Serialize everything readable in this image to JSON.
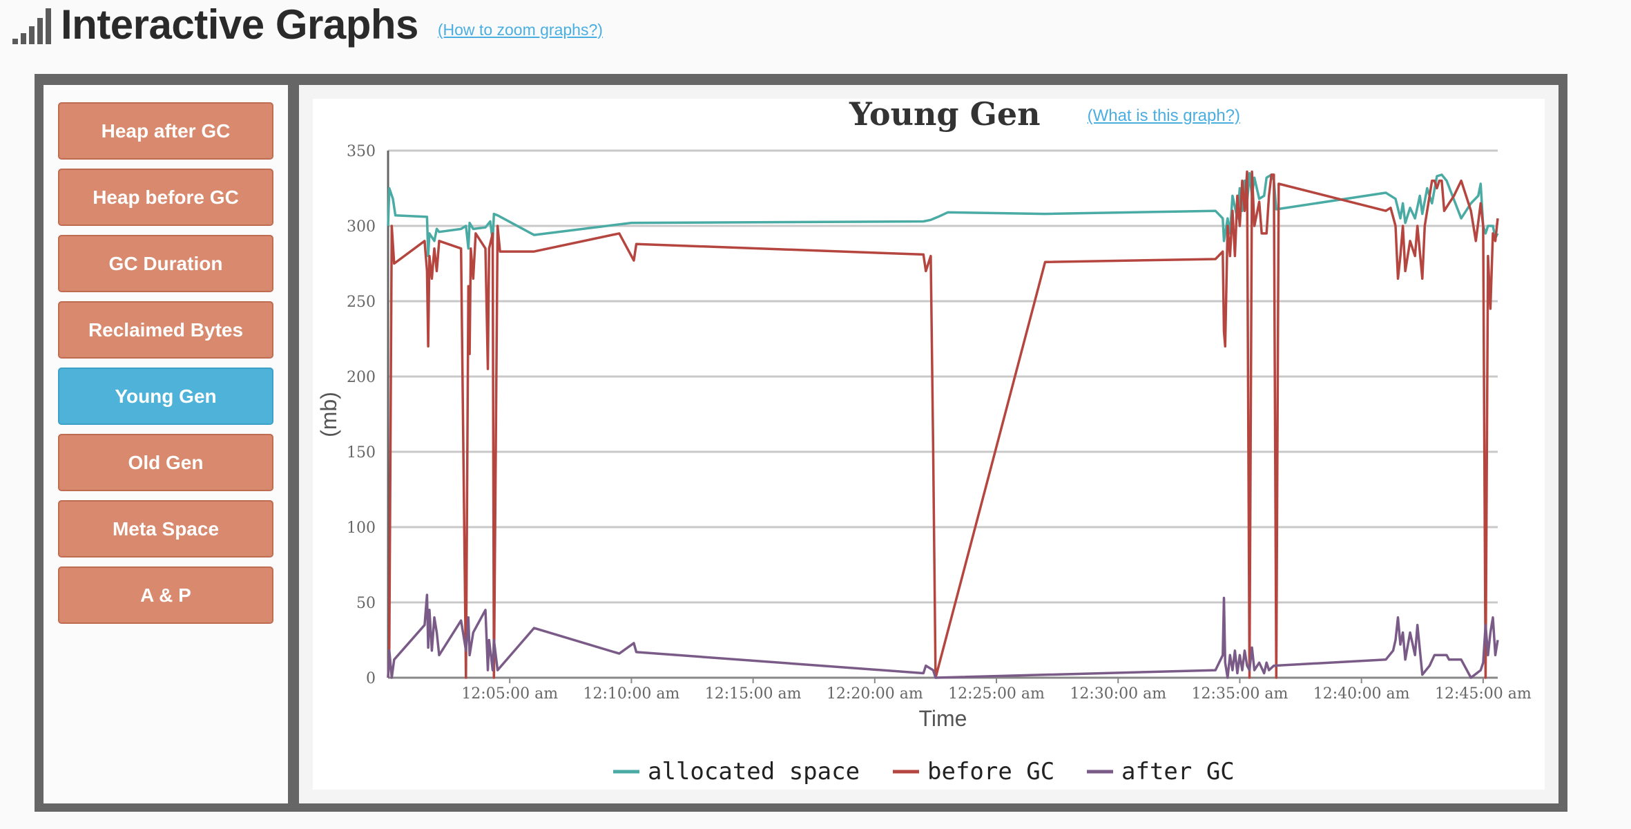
{
  "header": {
    "title": "Interactive Graphs",
    "zoom_help": "(How to zoom graphs?)",
    "icon": "signal-bars-icon"
  },
  "sidebar": {
    "items": [
      {
        "label": "Heap after GC",
        "active": false
      },
      {
        "label": "Heap before GC",
        "active": false
      },
      {
        "label": "GC Duration",
        "active": false
      },
      {
        "label": "Reclaimed Bytes",
        "active": false
      },
      {
        "label": "Young Gen",
        "active": true
      },
      {
        "label": "Old Gen",
        "active": false
      },
      {
        "label": "Meta Space",
        "active": false
      },
      {
        "label": "A & P",
        "active": false
      }
    ]
  },
  "colors": {
    "nav_button": "#d9896d",
    "nav_button_active": "#4fb2d9",
    "frame": "#666666",
    "link": "#4aaee0"
  },
  "chart": {
    "title": "Young Gen",
    "help_link": "(What is this graph?)"
  },
  "chart_data": {
    "type": "line",
    "title": "Young Gen",
    "xlabel": "Time",
    "ylabel": "(mb)",
    "ylim": [
      0,
      350
    ],
    "xlim_minutes": [
      0,
      45.6
    ],
    "yticks": [
      0,
      50,
      100,
      150,
      200,
      250,
      300,
      350
    ],
    "x_ticks": [
      {
        "t": 5,
        "label": "12:05:00 am"
      },
      {
        "t": 10,
        "label": "12:10:00 am"
      },
      {
        "t": 15,
        "label": "12:15:00 am"
      },
      {
        "t": 20,
        "label": "12:20:00 am"
      },
      {
        "t": 25,
        "label": "12:25:00 am"
      },
      {
        "t": 30,
        "label": "12:30:00 am"
      },
      {
        "t": 35,
        "label": "12:35:00 am"
      },
      {
        "t": 40,
        "label": "12:40:00 am"
      },
      {
        "t": 45,
        "label": "12:45:00 am"
      }
    ],
    "grid": true,
    "legend_position": "bottom",
    "series": [
      {
        "name": "allocated space",
        "color": "#4aaba4",
        "points": [
          [
            0,
            300
          ],
          [
            0.05,
            325
          ],
          [
            0.2,
            318
          ],
          [
            0.3,
            307
          ],
          [
            1.6,
            306
          ],
          [
            1.65,
            280
          ],
          [
            1.7,
            295
          ],
          [
            1.9,
            290
          ],
          [
            2.0,
            298
          ],
          [
            2.1,
            296
          ],
          [
            3.0,
            298
          ],
          [
            3.2,
            300
          ],
          [
            3.3,
            285
          ],
          [
            3.35,
            302
          ],
          [
            3.5,
            298
          ],
          [
            4.0,
            299
          ],
          [
            4.2,
            303
          ],
          [
            4.3,
            290
          ],
          [
            4.35,
            308
          ],
          [
            4.5,
            307
          ],
          [
            6.0,
            294
          ],
          [
            10.0,
            302
          ],
          [
            22.0,
            303
          ],
          [
            22.3,
            304
          ],
          [
            22.6,
            306
          ],
          [
            23.0,
            309
          ],
          [
            27.0,
            308
          ],
          [
            34.0,
            310
          ],
          [
            34.3,
            305
          ],
          [
            34.35,
            290
          ],
          [
            34.5,
            305
          ],
          [
            34.6,
            295
          ],
          [
            34.7,
            320
          ],
          [
            34.9,
            305
          ],
          [
            35.0,
            325
          ],
          [
            35.1,
            310
          ],
          [
            35.2,
            330
          ],
          [
            35.3,
            315
          ],
          [
            35.4,
            335
          ],
          [
            35.5,
            320
          ],
          [
            35.6,
            332
          ],
          [
            35.8,
            318
          ],
          [
            36.0,
            320
          ],
          [
            36.1,
            332
          ],
          [
            36.3,
            334
          ],
          [
            36.4,
            330
          ],
          [
            36.5,
            311
          ],
          [
            41.0,
            322
          ],
          [
            41.4,
            318
          ],
          [
            41.6,
            305
          ],
          [
            41.7,
            315
          ],
          [
            41.8,
            302
          ],
          [
            42.0,
            312
          ],
          [
            42.2,
            305
          ],
          [
            42.4,
            320
          ],
          [
            42.5,
            308
          ],
          [
            42.7,
            325
          ],
          [
            42.9,
            315
          ],
          [
            43.1,
            333
          ],
          [
            43.3,
            334
          ],
          [
            43.5,
            330
          ],
          [
            44.1,
            305
          ],
          [
            44.5,
            315
          ],
          [
            44.8,
            320
          ],
          [
            44.9,
            328
          ],
          [
            45.0,
            300
          ],
          [
            45.1,
            295
          ],
          [
            45.2,
            300
          ],
          [
            45.4,
            300
          ],
          [
            45.5,
            292
          ],
          [
            45.6,
            295
          ]
        ]
      },
      {
        "name": "before GC",
        "color": "#b5453f",
        "points": [
          [
            0,
            0
          ],
          [
            0.05,
            20
          ],
          [
            0.15,
            300
          ],
          [
            0.25,
            275
          ],
          [
            1.5,
            290
          ],
          [
            1.6,
            270
          ],
          [
            1.65,
            220
          ],
          [
            1.7,
            280
          ],
          [
            1.8,
            265
          ],
          [
            1.9,
            285
          ],
          [
            2.0,
            270
          ],
          [
            2.1,
            290
          ],
          [
            3.0,
            285
          ],
          [
            3.2,
            0
          ],
          [
            3.3,
            260
          ],
          [
            3.35,
            215
          ],
          [
            3.4,
            285
          ],
          [
            3.5,
            265
          ],
          [
            3.6,
            295
          ],
          [
            4.0,
            285
          ],
          [
            4.1,
            205
          ],
          [
            4.15,
            285
          ],
          [
            4.3,
            295
          ],
          [
            4.35,
            0
          ],
          [
            4.5,
            300
          ],
          [
            4.6,
            283
          ],
          [
            6.0,
            283
          ],
          [
            9.5,
            295
          ],
          [
            10.1,
            277
          ],
          [
            10.2,
            288
          ],
          [
            22.0,
            281
          ],
          [
            22.1,
            270
          ],
          [
            22.3,
            280
          ],
          [
            22.4,
            152
          ],
          [
            22.5,
            0
          ],
          [
            27.0,
            276
          ],
          [
            34.0,
            278
          ],
          [
            34.3,
            283
          ],
          [
            34.35,
            230
          ],
          [
            34.4,
            220
          ],
          [
            34.5,
            300
          ],
          [
            34.6,
            280
          ],
          [
            34.7,
            310
          ],
          [
            34.8,
            280
          ],
          [
            34.9,
            320
          ],
          [
            35.0,
            300
          ],
          [
            35.1,
            330
          ],
          [
            35.2,
            310
          ],
          [
            35.3,
            336
          ],
          [
            35.4,
            0
          ],
          [
            35.5,
            336
          ],
          [
            35.6,
            300
          ],
          [
            35.8,
            316
          ],
          [
            35.9,
            295
          ],
          [
            36.1,
            295
          ],
          [
            36.2,
            320
          ],
          [
            36.3,
            334
          ],
          [
            36.4,
            334
          ],
          [
            36.5,
            0
          ],
          [
            36.6,
            328
          ],
          [
            41.0,
            310
          ],
          [
            41.2,
            312
          ],
          [
            41.4,
            300
          ],
          [
            41.5,
            265
          ],
          [
            41.6,
            280
          ],
          [
            41.7,
            300
          ],
          [
            41.8,
            270
          ],
          [
            42.0,
            290
          ],
          [
            42.2,
            280
          ],
          [
            42.3,
            300
          ],
          [
            42.5,
            265
          ],
          [
            42.6,
            300
          ],
          [
            42.8,
            320
          ],
          [
            42.9,
            330
          ],
          [
            43.0,
            330
          ],
          [
            43.1,
            325
          ],
          [
            43.2,
            330
          ],
          [
            43.3,
            330
          ],
          [
            43.4,
            310
          ],
          [
            43.6,
            315
          ],
          [
            43.8,
            320
          ],
          [
            44.1,
            330
          ],
          [
            44.5,
            310
          ],
          [
            44.7,
            290
          ],
          [
            44.9,
            315
          ],
          [
            45.0,
            300
          ],
          [
            45.1,
            0
          ],
          [
            45.2,
            280
          ],
          [
            45.3,
            245
          ],
          [
            45.4,
            295
          ],
          [
            45.5,
            290
          ],
          [
            45.6,
            305
          ]
        ]
      },
      {
        "name": "after GC",
        "color": "#7a5b88",
        "points": [
          [
            0,
            0
          ],
          [
            0.05,
            18
          ],
          [
            0.15,
            0
          ],
          [
            0.25,
            12
          ],
          [
            1.5,
            35
          ],
          [
            1.6,
            55
          ],
          [
            1.65,
            20
          ],
          [
            1.7,
            45
          ],
          [
            1.8,
            18
          ],
          [
            1.9,
            40
          ],
          [
            2.0,
            30
          ],
          [
            2.1,
            15
          ],
          [
            3.0,
            38
          ],
          [
            3.2,
            18
          ],
          [
            3.3,
            40
          ],
          [
            3.35,
            15
          ],
          [
            3.5,
            30
          ],
          [
            4.0,
            45
          ],
          [
            4.1,
            5
          ],
          [
            4.15,
            25
          ],
          [
            4.3,
            5
          ],
          [
            4.35,
            25
          ],
          [
            4.5,
            5
          ],
          [
            6.0,
            33
          ],
          [
            9.5,
            16
          ],
          [
            10.1,
            23
          ],
          [
            10.2,
            17
          ],
          [
            22.0,
            3
          ],
          [
            22.1,
            8
          ],
          [
            22.4,
            5
          ],
          [
            22.5,
            0
          ],
          [
            34.0,
            5
          ],
          [
            34.3,
            15
          ],
          [
            34.35,
            53
          ],
          [
            34.4,
            10
          ],
          [
            34.5,
            0
          ],
          [
            34.6,
            15
          ],
          [
            34.7,
            5
          ],
          [
            34.8,
            18
          ],
          [
            34.9,
            3
          ],
          [
            35.0,
            15
          ],
          [
            35.1,
            5
          ],
          [
            35.2,
            18
          ],
          [
            35.3,
            8
          ],
          [
            35.4,
            5
          ],
          [
            35.5,
            20
          ],
          [
            35.6,
            5
          ],
          [
            35.8,
            10
          ],
          [
            36.0,
            3
          ],
          [
            36.1,
            10
          ],
          [
            36.2,
            5
          ],
          [
            36.4,
            8
          ],
          [
            41.0,
            12
          ],
          [
            41.3,
            18
          ],
          [
            41.4,
            25
          ],
          [
            41.5,
            40
          ],
          [
            41.6,
            22
          ],
          [
            41.7,
            30
          ],
          [
            41.8,
            12
          ],
          [
            42.0,
            30
          ],
          [
            42.2,
            15
          ],
          [
            42.3,
            35
          ],
          [
            42.5,
            2
          ],
          [
            42.8,
            8
          ],
          [
            43.0,
            15
          ],
          [
            43.5,
            15
          ],
          [
            43.6,
            12
          ],
          [
            44.1,
            12
          ],
          [
            44.5,
            0
          ],
          [
            44.9,
            5
          ],
          [
            45.0,
            10
          ],
          [
            45.1,
            35
          ],
          [
            45.2,
            15
          ],
          [
            45.3,
            30
          ],
          [
            45.4,
            40
          ],
          [
            45.5,
            15
          ],
          [
            45.6,
            25
          ]
        ]
      }
    ]
  }
}
